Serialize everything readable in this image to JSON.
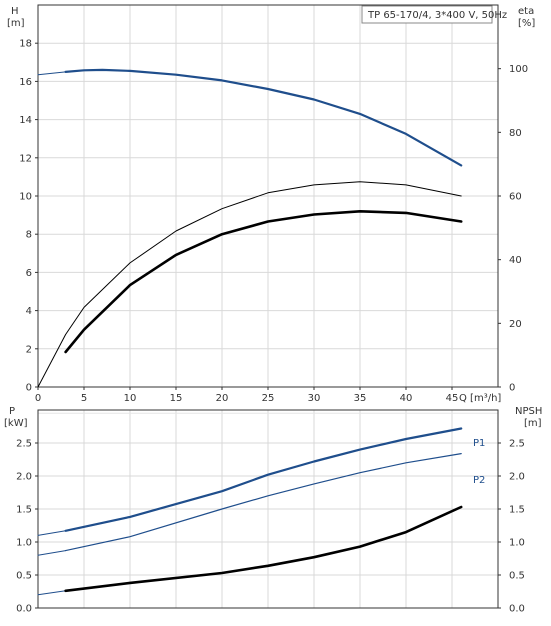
{
  "chart_data": [
    {
      "type": "line",
      "title": "TP 65-170/4, 3*400 V, 50Hz",
      "xlabel": "Q [m³/h]",
      "ylabel_left": [
        "H",
        "[m]"
      ],
      "ylabel_right": [
        "eta",
        "[%]"
      ],
      "xlim": [
        0,
        50
      ],
      "ylim_left": [
        0,
        20
      ],
      "ylim_right": [
        0,
        120
      ],
      "x_ticks": [
        0,
        5,
        10,
        15,
        20,
        25,
        30,
        35,
        40,
        45
      ],
      "y_ticks_left": [
        0,
        2,
        4,
        6,
        8,
        10,
        12,
        14,
        16,
        18
      ],
      "y_ticks_right": [
        0,
        20,
        40,
        60,
        80,
        100
      ],
      "grid": true,
      "colors": {
        "head": "#1f4e8c",
        "eta": "#000000",
        "thin": "#000000"
      },
      "series": [
        {
          "key": "head_ext",
          "axis": "left",
          "x": [
            0,
            3
          ],
          "y": [
            16.35,
            16.5
          ]
        },
        {
          "key": "head",
          "axis": "left",
          "x": [
            3,
            5,
            7,
            10,
            15,
            20,
            25,
            30,
            35,
            40,
            46
          ],
          "y": [
            16.5,
            16.58,
            16.6,
            16.55,
            16.35,
            16.05,
            15.6,
            15.05,
            14.3,
            13.25,
            11.6
          ]
        },
        {
          "key": "eta_thin",
          "axis": "right",
          "x": [
            0,
            3,
            5,
            10,
            15,
            20,
            25,
            30,
            35,
            40,
            46
          ],
          "y": [
            0,
            16.5,
            25,
            39,
            49,
            56,
            61,
            63.5,
            64.5,
            63.5,
            60
          ]
        },
        {
          "key": "eta",
          "axis": "right",
          "x": [
            3,
            5,
            10,
            15,
            20,
            25,
            30,
            35,
            40,
            46
          ],
          "y": [
            11,
            18,
            32,
            41.5,
            48,
            52,
            54.2,
            55.2,
            54.7,
            52
          ]
        }
      ]
    },
    {
      "type": "line",
      "xlabel": "",
      "ylabel_left": [
        "P",
        "[kW]"
      ],
      "ylabel_right": [
        "NPSH",
        "[m]"
      ],
      "xlim": [
        0,
        50
      ],
      "ylim_left": [
        0,
        3
      ],
      "ylim_right": [
        0,
        3
      ],
      "y_ticks_left": [
        0.0,
        0.5,
        1.0,
        1.5,
        2.0,
        2.5
      ],
      "y_ticks_right": [
        0.0,
        0.5,
        1.0,
        1.5,
        2.0,
        2.5
      ],
      "y_tick_labels": [
        "0.0",
        "0.5",
        "1.0",
        "1.5",
        "2.0",
        "2.5"
      ],
      "grid": true,
      "colors": {
        "P1": "#1f4e8c",
        "P2": "#1f4e8c",
        "npsh": "#000000"
      },
      "series": [
        {
          "key": "p1_ext",
          "axis": "left",
          "x": [
            0,
            3
          ],
          "y": [
            1.1,
            1.17
          ]
        },
        {
          "key": "p1",
          "name": "P1",
          "axis": "left",
          "x": [
            3,
            10,
            20,
            25,
            30,
            35,
            40,
            46
          ],
          "y": [
            1.17,
            1.38,
            1.77,
            2.02,
            2.22,
            2.4,
            2.56,
            2.72
          ]
        },
        {
          "key": "p2_ext",
          "axis": "left",
          "x": [
            0,
            3
          ],
          "y": [
            0.8,
            0.87
          ]
        },
        {
          "key": "p2",
          "name": "P2",
          "axis": "left",
          "x": [
            3,
            10,
            20,
            25,
            30,
            35,
            40,
            46
          ],
          "y": [
            0.87,
            1.08,
            1.5,
            1.7,
            1.88,
            2.05,
            2.2,
            2.34
          ]
        },
        {
          "key": "npsh_ext",
          "axis": "right",
          "x": [
            0,
            3
          ],
          "y": [
            0.2,
            0.26
          ]
        },
        {
          "key": "npsh",
          "axis": "right",
          "x": [
            3,
            10,
            20,
            25,
            30,
            35,
            40,
            46
          ],
          "y": [
            0.26,
            0.38,
            0.53,
            0.64,
            0.77,
            0.93,
            1.15,
            1.53
          ]
        }
      ]
    }
  ]
}
